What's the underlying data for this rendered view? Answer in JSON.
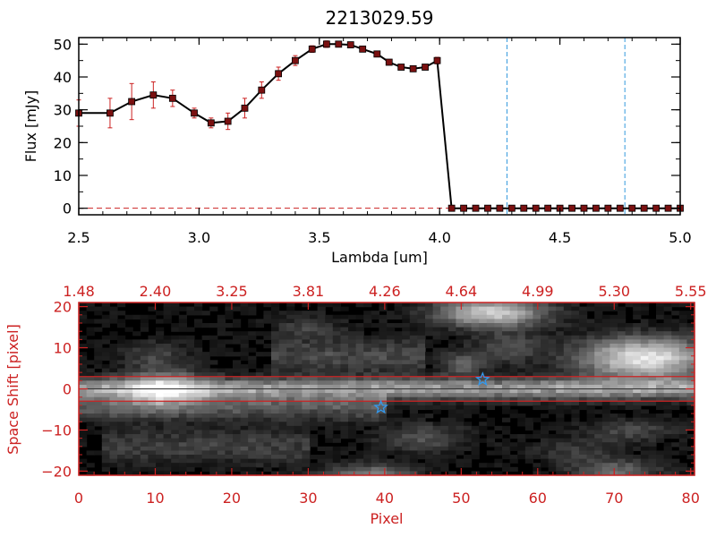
{
  "colors": {
    "axis": "#000000",
    "red": "#cc2222",
    "marker": "#7a1010",
    "errorbar": "#cc2222",
    "vline": "#3399dd",
    "star": "#3399ee",
    "background": "#ffffff"
  },
  "chart_data": [
    {
      "type": "line",
      "title": "2213029.59",
      "xlabel": "Lambda [um]",
      "ylabel": "Flux [mJy]",
      "xlim": [
        2.5,
        5.0
      ],
      "ylim": [
        -2,
        52
      ],
      "x_ticks": [
        2.5,
        3.0,
        3.5,
        4.0,
        4.5,
        5.0
      ],
      "x_tick_labels": [
        "2.5",
        "3.0",
        "3.5",
        "4.0",
        "4.5",
        "5.0"
      ],
      "y_ticks": [
        0,
        10,
        20,
        30,
        40,
        50
      ],
      "y_tick_labels": [
        "0",
        "10",
        "20",
        "30",
        "40",
        "50"
      ],
      "series": [
        {
          "x": [
            2.5,
            2.63,
            2.72,
            2.81,
            2.89,
            2.98,
            3.05,
            3.12,
            3.19,
            3.26,
            3.33,
            3.4,
            3.47,
            3.53,
            3.58,
            3.63,
            3.68,
            3.74,
            3.79,
            3.84,
            3.89,
            3.94,
            3.99,
            4.05,
            4.1,
            4.15,
            4.2,
            4.25,
            4.3,
            4.35,
            4.4,
            4.45,
            4.5,
            4.55,
            4.6,
            4.65,
            4.7,
            4.75,
            4.8,
            4.85,
            4.9,
            4.95,
            5.0
          ],
          "y": [
            29,
            29,
            32.5,
            34.5,
            33.5,
            29,
            26,
            26.5,
            30.5,
            36,
            41,
            45,
            48.5,
            50,
            50,
            49.8,
            48.5,
            47,
            44.5,
            43,
            42.5,
            43,
            45,
            0,
            0,
            0,
            0,
            0,
            0,
            0,
            0,
            0,
            0,
            0,
            0,
            0,
            0,
            0,
            0,
            0,
            0,
            0,
            0
          ],
          "yerr": [
            4,
            4.5,
            5.5,
            4,
            2.5,
            1.5,
            1.5,
            2.5,
            3,
            2.5,
            2,
            1.5,
            1,
            1,
            0.8,
            0.8,
            0.8,
            0.8,
            0.8,
            0.8,
            0.8,
            0.8,
            1,
            0,
            0,
            0,
            0,
            0,
            0,
            0,
            0,
            0,
            0,
            0,
            0,
            0,
            0,
            0,
            0,
            0,
            0,
            0,
            0
          ]
        }
      ],
      "vlines": [
        4.28,
        4.77
      ],
      "hline": 0
    },
    {
      "type": "heatmap",
      "xlabel": "Pixel",
      "ylabel": "Space Shift [pixel]",
      "xlim": [
        0,
        80.5
      ],
      "ylim": [
        -21,
        21
      ],
      "x_ticks": [
        0,
        10,
        20,
        30,
        40,
        50,
        60,
        70,
        80
      ],
      "x_tick_labels": [
        "0",
        "10",
        "20",
        "30",
        "40",
        "50",
        "60",
        "70",
        "80"
      ],
      "y_ticks": [
        -20,
        -10,
        0,
        10,
        20
      ],
      "y_tick_labels": [
        "−20",
        "−10",
        "0",
        "10",
        "20"
      ],
      "top_ticks": [
        0,
        10,
        20,
        30,
        40,
        50,
        60,
        70,
        80
      ],
      "top_tick_labels": [
        "1.48",
        "2.40",
        "3.25",
        "3.81",
        "4.26",
        "4.64",
        "4.99",
        "5.30",
        "5.55"
      ],
      "hlines": [
        3,
        -3
      ],
      "stars": [
        {
          "x": 39.5,
          "y": -4.5
        },
        {
          "x": 52.8,
          "y": 2.3
        }
      ],
      "bands": [
        {
          "y": 0,
          "width": 1.8,
          "amp": 0.55,
          "x0": 0,
          "x1": 80
        },
        {
          "y": -4.5,
          "width": 2.2,
          "amp": 0.28,
          "x0": 0,
          "x1": 40
        },
        {
          "y": 8,
          "width": 3,
          "amp": 0.22,
          "x0": 25,
          "x1": 45
        },
        {
          "y": -14,
          "width": 3,
          "amp": 0.18,
          "x0": 3,
          "x1": 30
        }
      ],
      "blobs": [
        {
          "x": 11,
          "y": 0,
          "sx": 3.5,
          "sy": 3,
          "amp": 0.5
        },
        {
          "x": 10,
          "y": 8,
          "sx": 3,
          "sy": 2.5,
          "amp": 0.2
        },
        {
          "x": 54,
          "y": 18.5,
          "sx": 5,
          "sy": 2.5,
          "amp": 0.75
        },
        {
          "x": 74,
          "y": 7.5,
          "sx": 6,
          "sy": 3.5,
          "amp": 0.85
        },
        {
          "x": 56,
          "y": 10,
          "sx": 3,
          "sy": 2.5,
          "amp": 0.25
        },
        {
          "x": 50,
          "y": 6,
          "sx": 2,
          "sy": 2,
          "amp": 0.3
        },
        {
          "x": 45,
          "y": -12,
          "sx": 4,
          "sy": 2.5,
          "amp": 0.25
        },
        {
          "x": 72,
          "y": -10,
          "sx": 4,
          "sy": 2,
          "amp": 0.22
        },
        {
          "x": 38,
          "y": -21,
          "sx": 4,
          "sy": 1.8,
          "amp": 0.45
        },
        {
          "x": 70,
          "y": -20,
          "sx": 4,
          "sy": 2,
          "amp": 0.35
        },
        {
          "x": 30,
          "y": 15,
          "sx": 3,
          "sy": 2,
          "amp": 0.18
        },
        {
          "x": 65,
          "y": -15,
          "sx": 4,
          "sy": 2,
          "amp": 0.16
        }
      ]
    }
  ]
}
